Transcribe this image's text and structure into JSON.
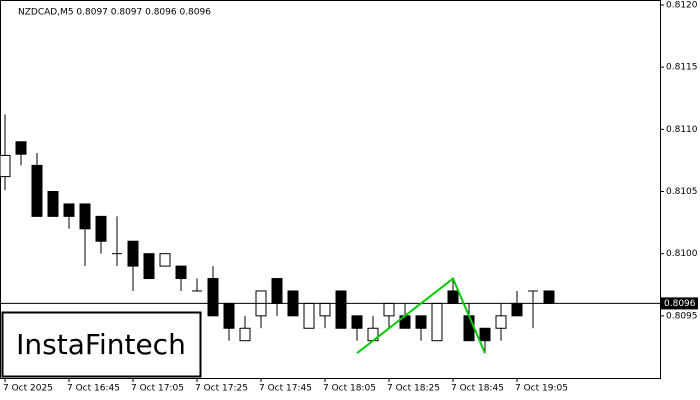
{
  "chart_data": {
    "type": "candlestick",
    "title": "NZDCAD,M5  0.8097 0.8097 0.8096 0.8096",
    "watermark": "InstaFintech",
    "categories": [
      "7 Oct 2025",
      null,
      null,
      null,
      "7 Oct 16:45",
      null,
      null,
      null,
      "7 Oct 17:05",
      null,
      null,
      null,
      "7 Oct 17:25",
      null,
      null,
      null,
      "7 Oct 17:45",
      null,
      null,
      null,
      "7 Oct 18:05",
      null,
      null,
      null,
      "7 Oct 18:25",
      null,
      null,
      null,
      "7 Oct 18:45",
      null,
      null,
      null,
      "7 Oct 19:05",
      null,
      null
    ],
    "open": [
      0.81062,
      0.8109,
      0.81071,
      0.8105,
      0.8104,
      0.8104,
      0.8103,
      0.81,
      0.8101,
      0.81,
      0.8099,
      0.8099,
      0.8097,
      0.8098,
      0.8096,
      0.8093,
      0.8095,
      0.8098,
      0.8097,
      0.8094,
      0.8095,
      0.8097,
      0.8095,
      0.8093,
      0.8095,
      0.8095,
      0.8095,
      0.8093,
      0.8097,
      0.8095,
      0.8094,
      0.8094,
      0.8096,
      0.8097,
      0.8097
    ],
    "high": [
      0.81112,
      0.8109,
      0.81081,
      0.8105,
      0.8104,
      0.8104,
      0.8103,
      0.8103,
      0.8101,
      0.81,
      0.81,
      0.8099,
      0.8098,
      0.8099,
      0.8096,
      0.8095,
      0.8097,
      0.8098,
      0.8097,
      0.8096,
      0.8096,
      0.8097,
      0.8095,
      0.8095,
      0.8096,
      0.8096,
      0.8095,
      0.8096,
      0.8098,
      0.8096,
      0.8094,
      0.8096,
      0.8097,
      0.8097,
      0.8097
    ],
    "low": [
      0.81051,
      0.81071,
      0.8103,
      0.8103,
      0.8102,
      0.8099,
      0.81,
      0.8099,
      0.8097,
      0.8098,
      0.8099,
      0.8097,
      0.8097,
      0.8095,
      0.8093,
      0.8093,
      0.8094,
      0.8095,
      0.8095,
      0.8094,
      0.8094,
      0.8094,
      0.8093,
      0.8093,
      0.8094,
      0.8094,
      0.8093,
      0.8093,
      0.8096,
      0.8093,
      0.8092,
      0.8093,
      0.8095,
      0.8094,
      0.8096
    ],
    "close": [
      0.81079,
      0.8108,
      0.8103,
      0.8103,
      0.8103,
      0.8102,
      0.8101,
      0.81,
      0.8099,
      0.8098,
      0.81,
      0.8098,
      0.8097,
      0.8095,
      0.8094,
      0.8094,
      0.8097,
      0.8096,
      0.8095,
      0.8096,
      0.8096,
      0.8094,
      0.8094,
      0.8094,
      0.8096,
      0.8094,
      0.8094,
      0.8096,
      0.8096,
      0.8093,
      0.8093,
      0.8095,
      0.8095,
      0.8097,
      0.8096
    ],
    "up_color": "#ffffff",
    "down_color": "#000000",
    "pattern": {
      "color": "#00cc00",
      "x": [
        22,
        28,
        30
      ],
      "values": [
        0.8092,
        0.8098,
        0.8092
      ]
    },
    "last_price": {
      "value": 0.8096,
      "label": "0.8096"
    },
    "ylim": [
      0.809,
      0.812
    ],
    "yticks": [
      {
        "value": 0.8095,
        "label": "0.8095"
      },
      {
        "value": 0.81,
        "label": "0.8100"
      },
      {
        "value": 0.8105,
        "label": "0.8105"
      },
      {
        "value": 0.811,
        "label": "0.8110"
      },
      {
        "value": 0.8115,
        "label": "0.8115"
      },
      {
        "value": 0.812,
        "label": "0.8120"
      }
    ]
  }
}
